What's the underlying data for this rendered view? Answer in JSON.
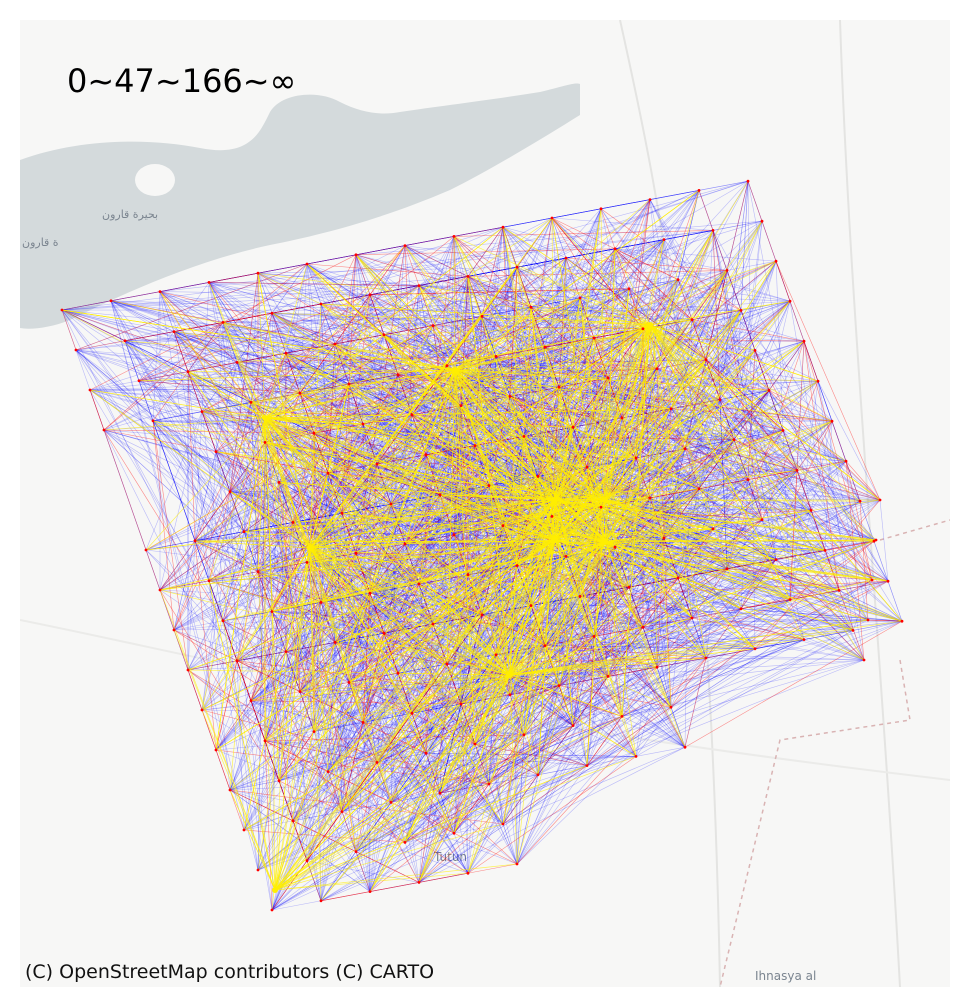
{
  "legend": {
    "text": "0~47~166~∞",
    "bins": [
      {
        "range": "0~47",
        "color": "#0000ff"
      },
      {
        "range": "47~166",
        "color": "#ff0000"
      },
      {
        "range": "166~∞",
        "color": "#ffee00"
      }
    ]
  },
  "attribution": "(C) OpenStreetMap contributors (C) CARTO",
  "basemap": {
    "water_color": "#d4dadc",
    "land_color": "#f7f7f6",
    "place_labels": [
      {
        "name": "بحيرة قارون"
      },
      {
        "name": "ة قارون"
      },
      {
        "name": "Tutun"
      },
      {
        "name": "Ihnasya al"
      }
    ]
  },
  "network": {
    "description_hidden": false,
    "edge_colors": {
      "low": "#0000ff",
      "mid": "#ff0000",
      "high": "#ffee00"
    },
    "hubs": [
      {
        "id": "h1",
        "label": ""
      },
      {
        "id": "h2",
        "label": ""
      },
      {
        "id": "h3",
        "label": ""
      },
      {
        "id": "h4",
        "label": ""
      },
      {
        "id": "h5",
        "label": ""
      }
    ]
  }
}
